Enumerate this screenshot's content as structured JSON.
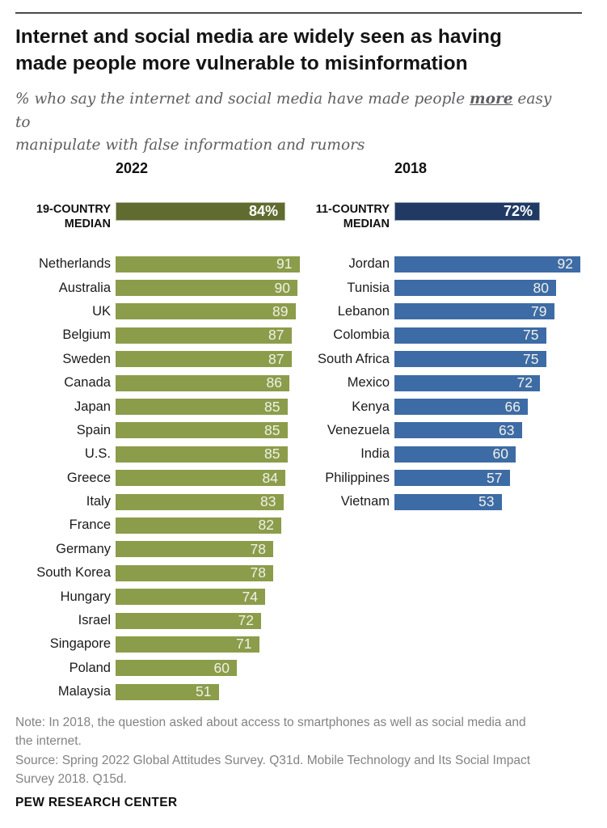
{
  "header": {
    "title_lines": [
      "Internet and social media are widely seen as having",
      "made people more vulnerable to misinformation"
    ],
    "subtitle": {
      "prefix": "% who say the internet and social media have made people ",
      "emphasis": "more",
      "suffix_line1": " easy to",
      "line2": "manipulate with false information and rumors"
    }
  },
  "chart_data": [
    {
      "type": "bar",
      "orientation": "horizontal",
      "title": "2022",
      "bar_color": "#8b9d4a",
      "value_text_color": "#f1f1e8",
      "median": {
        "label": "19-COUNTRY MEDIAN",
        "label_lines": [
          "19-COUNTRY",
          "MEDIAN"
        ],
        "value": 84,
        "display": "84%",
        "color": "#5f6b2f"
      },
      "categories": [
        "Netherlands",
        "Australia",
        "UK",
        "Belgium",
        "Sweden",
        "Canada",
        "Japan",
        "Spain",
        "U.S.",
        "Greece",
        "Italy",
        "France",
        "Germany",
        "South Korea",
        "Hungary",
        "Israel",
        "Singapore",
        "Poland",
        "Malaysia"
      ],
      "values": [
        91,
        90,
        89,
        87,
        87,
        86,
        85,
        85,
        85,
        84,
        83,
        82,
        78,
        78,
        74,
        72,
        71,
        60,
        51
      ],
      "xlim": [
        0,
        100
      ],
      "grid": false,
      "legend": false
    },
    {
      "type": "bar",
      "orientation": "horizontal",
      "title": "2018",
      "bar_color": "#3d6ba5",
      "value_text_color": "#f1f1e8",
      "median": {
        "label": "11-COUNTRY MEDIAN",
        "label_lines": [
          "11-COUNTRY",
          "MEDIAN"
        ],
        "value": 72,
        "display": "72%",
        "color": "#203a64"
      },
      "categories": [
        "Jordan",
        "Tunisia",
        "Lebanon",
        "Colombia",
        "South Africa",
        "Mexico",
        "Kenya",
        "Venezuela",
        "India",
        "Philippines",
        "Vietnam"
      ],
      "values": [
        92,
        80,
        79,
        75,
        75,
        72,
        66,
        63,
        60,
        57,
        53
      ],
      "xlim": [
        0,
        100
      ],
      "grid": false,
      "legend": false
    }
  ],
  "footer": {
    "note_lines": [
      "Note: In 2018, the question asked about access to smartphones as well as social media and",
      "the internet."
    ],
    "source_lines": [
      "Source: Spring 2022 Global Attitudes Survey. Q31d. Mobile Technology and Its Social Impact",
      "Survey 2018. Q15d."
    ],
    "brand": "PEW RESEARCH CENTER"
  }
}
